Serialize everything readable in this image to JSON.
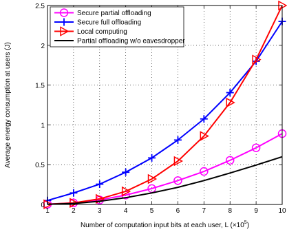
{
  "chart_data": {
    "type": "line",
    "x": [
      1,
      2,
      3,
      4,
      5,
      6,
      7,
      8,
      9,
      10
    ],
    "xlim": [
      1,
      10
    ],
    "ylim": [
      0,
      2.5
    ],
    "xticks": [
      "1",
      "2",
      "3",
      "4",
      "5",
      "6",
      "7",
      "8",
      "9",
      "10"
    ],
    "yticks": [
      "0",
      "0.5",
      "1",
      "1.5",
      "2",
      "2.5"
    ],
    "xlabel": "Number of computation input bits at each user, L (×10",
    "xlabel_exp": "5",
    "xlabel_close": ")",
    "ylabel": "Average energy consumption at users (J)",
    "grid": true,
    "legend_position": "top-left",
    "series": [
      {
        "name": "Secure partial offloading",
        "color": "#ff00ff",
        "marker": "circle",
        "values": [
          0.003,
          0.019,
          0.056,
          0.118,
          0.2,
          0.3,
          0.415,
          0.555,
          0.712,
          0.89
        ]
      },
      {
        "name": "Secure full offloading",
        "color": "#0000ff",
        "marker": "plus",
        "values": [
          0.05,
          0.145,
          0.255,
          0.405,
          0.585,
          0.81,
          1.075,
          1.405,
          1.8,
          2.3
        ]
      },
      {
        "name": "Local computing",
        "color": "#ff0000",
        "marker": "triangle-right",
        "values": [
          0.002,
          0.02,
          0.07,
          0.165,
          0.32,
          0.545,
          0.86,
          1.28,
          1.82,
          2.5
        ]
      },
      {
        "name": "Partial offloading w/o eavesdropper",
        "color": "#000000",
        "marker": "none",
        "values": [
          0.002,
          0.012,
          0.04,
          0.085,
          0.145,
          0.215,
          0.3,
          0.395,
          0.495,
          0.6
        ]
      }
    ]
  }
}
